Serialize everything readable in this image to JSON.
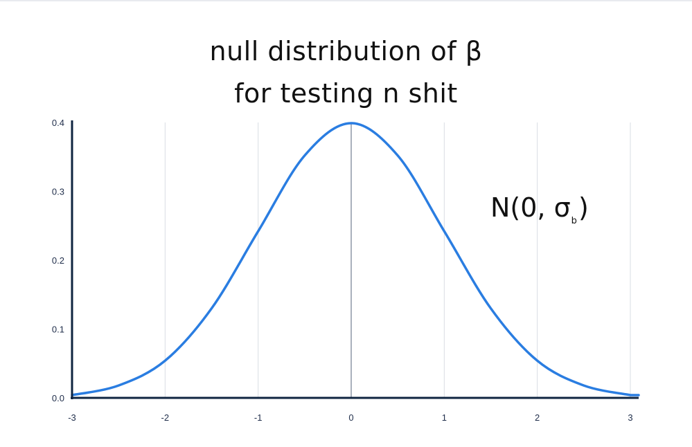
{
  "title_lines": [
    "null distribution of β",
    "for testing n shit"
  ],
  "annotation": {
    "prefix": "N(0, σ",
    "subscript": "b",
    "suffix": ")"
  },
  "colors": {
    "curve": "#2a7de1",
    "axis": "#0f2440",
    "grid": "#d9dde3",
    "center_line": "#53627a"
  },
  "chart_data": {
    "type": "line",
    "title": "null distribution of β for testing n shit",
    "xlabel": "",
    "ylabel": "",
    "xlim": [
      -3,
      3
    ],
    "ylim": [
      0,
      0.4
    ],
    "grid": "vertical",
    "x_ticks": [
      "-3",
      "-2",
      "-1",
      "0",
      "1",
      "2",
      "3"
    ],
    "y_ticks": [
      "0.0",
      "0.1",
      "0.2",
      "0.3",
      "0.4"
    ],
    "series": [
      {
        "x": [
          -3.0,
          -2.5,
          -2.0,
          -1.5,
          -1.0,
          -0.5,
          0.0,
          0.5,
          1.0,
          1.5,
          2.0,
          2.5,
          3.0
        ],
        "y": [
          0.004,
          0.018,
          0.054,
          0.13,
          0.242,
          0.352,
          0.399,
          0.352,
          0.242,
          0.13,
          0.054,
          0.018,
          0.004
        ]
      }
    ],
    "annotations": [
      "N(0, σb)"
    ]
  }
}
